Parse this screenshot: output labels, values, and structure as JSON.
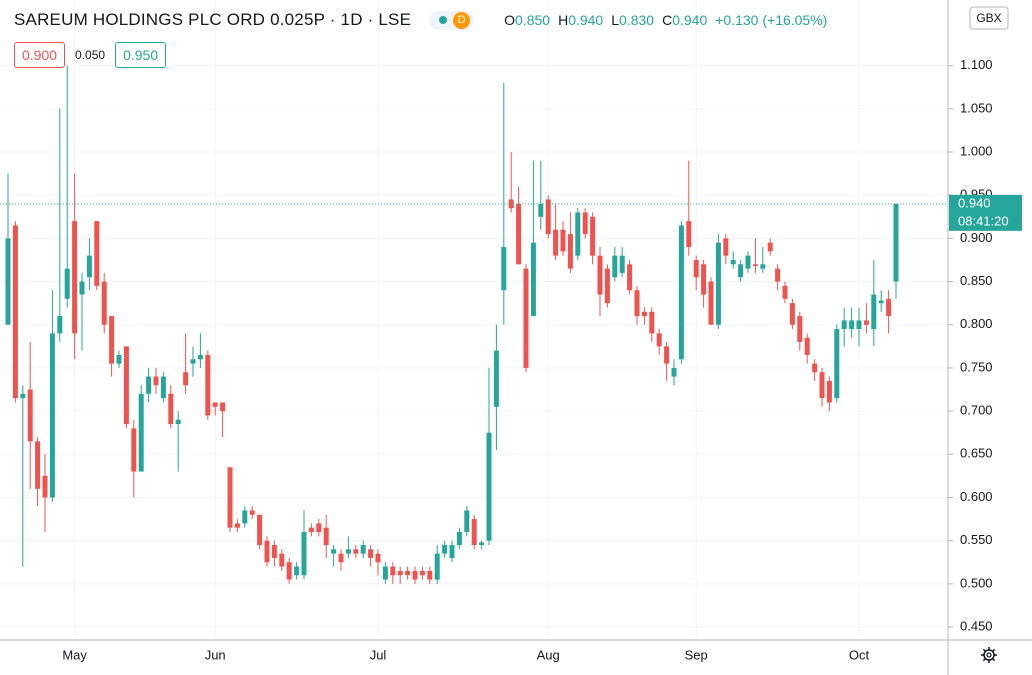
{
  "header": {
    "title": "SAREUM HOLDINGS PLC ORD 0.025P · 1D · LSE",
    "badge": "D",
    "ohlc": [
      {
        "label": "O",
        "value": "0.850"
      },
      {
        "label": "H",
        "value": "0.940"
      },
      {
        "label": "L",
        "value": "0.830"
      },
      {
        "label": "C",
        "value": "0.940"
      }
    ],
    "change": "+0.130 (+16.05%)",
    "sell": "0.900",
    "spread": "0.050",
    "buy": "0.950",
    "currency": "GBX",
    "price_label": "0.940",
    "countdown": "08:41:20"
  },
  "chart_data": {
    "type": "candlestick",
    "up_color": "#26a69a",
    "down_color": "#ef5350",
    "grid": true,
    "ylim": [
      0.435,
      1.176
    ],
    "yticks": [
      {
        "value": 0.45,
        "label": "0.450"
      },
      {
        "value": 0.5,
        "label": "0.500"
      },
      {
        "value": 0.55,
        "label": "0.550"
      },
      {
        "value": 0.6,
        "label": "0.600"
      },
      {
        "value": 0.65,
        "label": "0.650"
      },
      {
        "value": 0.7,
        "label": "0.700"
      },
      {
        "value": 0.75,
        "label": "0.750"
      },
      {
        "value": 0.8,
        "label": "0.800"
      },
      {
        "value": 0.85,
        "label": "0.850"
      },
      {
        "value": 0.9,
        "label": "0.900"
      },
      {
        "value": 0.95,
        "label": "0.950"
      },
      {
        "value": 1.0,
        "label": "1.000"
      },
      {
        "value": 1.05,
        "label": "1.050"
      },
      {
        "value": 1.1,
        "label": "1.100"
      }
    ],
    "categories": [
      null,
      null,
      null,
      null,
      null,
      null,
      null,
      null,
      null,
      "May",
      null,
      null,
      null,
      null,
      null,
      null,
      null,
      null,
      null,
      null,
      null,
      null,
      null,
      null,
      null,
      null,
      null,
      null,
      "Jun",
      null,
      null,
      null,
      null,
      null,
      null,
      null,
      null,
      null,
      null,
      null,
      null,
      null,
      null,
      null,
      null,
      null,
      null,
      null,
      null,
      null,
      "Jul",
      null,
      null,
      null,
      null,
      null,
      null,
      null,
      null,
      null,
      null,
      null,
      null,
      null,
      null,
      null,
      null,
      null,
      null,
      null,
      null,
      null,
      null,
      "Aug",
      null,
      null,
      null,
      null,
      null,
      null,
      null,
      null,
      null,
      null,
      null,
      null,
      null,
      null,
      null,
      null,
      null,
      null,
      null,
      "Sep",
      null,
      null,
      null,
      null,
      null,
      null,
      null,
      null,
      null,
      null,
      null,
      null,
      null,
      null,
      null,
      null,
      null,
      null,
      null,
      null,
      null,
      "Oct",
      null,
      null,
      null,
      null,
      null
    ],
    "open": [
      0.8,
      0.915,
      0.715,
      0.725,
      0.665,
      0.625,
      0.6,
      0.79,
      0.83,
      0.92,
      0.835,
      0.855,
      0.92,
      0.85,
      0.81,
      0.755,
      0.775,
      0.68,
      0.63,
      0.72,
      0.74,
      0.715,
      0.72,
      0.685,
      0.745,
      0.755,
      0.76,
      0.765,
      0.71,
      0.71,
      0.635,
      0.57,
      0.57,
      0.585,
      0.58,
      0.55,
      0.545,
      0.535,
      0.525,
      0.51,
      0.51,
      0.565,
      0.57,
      0.565,
      0.535,
      0.535,
      0.535,
      0.54,
      0.535,
      0.54,
      0.535,
      0.505,
      0.52,
      0.515,
      0.515,
      0.515,
      0.515,
      0.515,
      0.505,
      0.535,
      0.53,
      0.545,
      0.56,
      0.575,
      0.545,
      0.55,
      0.705,
      0.84,
      0.945,
      0.94,
      0.865,
      0.81,
      0.925,
      0.945,
      0.91,
      0.91,
      0.905,
      0.88,
      0.93,
      0.925,
      0.88,
      0.865,
      0.855,
      0.86,
      0.87,
      0.84,
      0.815,
      0.815,
      0.79,
      0.775,
      0.74,
      0.76,
      0.92,
      0.875,
      0.87,
      0.85,
      0.8,
      0.9,
      0.87,
      0.855,
      0.865,
      0.87,
      0.865,
      0.895,
      0.865,
      0.845,
      0.825,
      0.81,
      0.785,
      0.755,
      0.745,
      0.735,
      0.715,
      0.795,
      0.795,
      0.795,
      0.805,
      0.795,
      0.825,
      0.83,
      0.85
    ],
    "high": [
      0.975,
      0.92,
      0.73,
      0.78,
      0.67,
      0.65,
      0.84,
      1.05,
      1.1,
      0.975,
      0.86,
      0.9,
      0.92,
      0.86,
      0.81,
      0.77,
      0.775,
      0.69,
      0.73,
      0.75,
      0.75,
      0.745,
      0.73,
      0.7,
      0.79,
      0.775,
      0.79,
      0.77,
      0.71,
      0.71,
      0.635,
      0.575,
      0.59,
      0.59,
      0.58,
      0.555,
      0.55,
      0.54,
      0.53,
      0.525,
      0.585,
      0.57,
      0.575,
      0.58,
      0.545,
      0.54,
      0.555,
      0.545,
      0.55,
      0.545,
      0.54,
      0.525,
      0.525,
      0.52,
      0.52,
      0.52,
      0.52,
      0.52,
      0.545,
      0.55,
      0.55,
      0.565,
      0.59,
      0.58,
      0.55,
      0.75,
      0.8,
      1.08,
      1.0,
      0.96,
      0.87,
      0.99,
      0.99,
      0.95,
      0.94,
      0.92,
      0.93,
      0.935,
      0.935,
      0.93,
      0.89,
      0.87,
      0.89,
      0.89,
      0.875,
      0.845,
      0.82,
      0.82,
      0.795,
      0.78,
      0.76,
      0.92,
      0.99,
      0.88,
      0.875,
      0.855,
      0.905,
      0.905,
      0.885,
      0.875,
      0.885,
      0.9,
      0.89,
      0.9,
      0.87,
      0.85,
      0.83,
      0.815,
      0.79,
      0.76,
      0.75,
      0.74,
      0.8,
      0.82,
      0.82,
      0.82,
      0.825,
      0.875,
      0.84,
      0.84,
      0.94
    ],
    "low": [
      0.8,
      0.71,
      0.52,
      0.61,
      0.59,
      0.56,
      0.595,
      0.78,
      0.82,
      0.76,
      0.77,
      0.84,
      0.84,
      0.79,
      0.74,
      0.75,
      0.68,
      0.6,
      0.63,
      0.71,
      0.72,
      0.71,
      0.68,
      0.63,
      0.72,
      0.74,
      0.75,
      0.69,
      0.695,
      0.67,
      0.56,
      0.56,
      0.565,
      0.575,
      0.54,
      0.52,
      0.52,
      0.515,
      0.5,
      0.505,
      0.505,
      0.555,
      0.555,
      0.53,
      0.52,
      0.515,
      0.53,
      0.53,
      0.53,
      0.52,
      0.51,
      0.5,
      0.5,
      0.5,
      0.505,
      0.5,
      0.505,
      0.5,
      0.5,
      0.53,
      0.525,
      0.54,
      0.555,
      0.54,
      0.54,
      0.545,
      0.655,
      0.8,
      0.93,
      0.87,
      0.745,
      0.81,
      0.91,
      0.9,
      0.875,
      0.88,
      0.86,
      0.875,
      0.9,
      0.87,
      0.81,
      0.82,
      0.85,
      0.855,
      0.835,
      0.8,
      0.8,
      0.78,
      0.765,
      0.735,
      0.73,
      0.755,
      0.88,
      0.84,
      0.82,
      0.8,
      0.795,
      0.87,
      0.865,
      0.85,
      0.86,
      0.86,
      0.86,
      0.88,
      0.84,
      0.825,
      0.795,
      0.77,
      0.755,
      0.735,
      0.705,
      0.7,
      0.71,
      0.775,
      0.785,
      0.775,
      0.79,
      0.775,
      0.815,
      0.79,
      0.83
    ],
    "close": [
      0.9,
      0.715,
      0.72,
      0.665,
      0.61,
      0.6,
      0.79,
      0.81,
      0.865,
      0.79,
      0.85,
      0.88,
      0.845,
      0.8,
      0.755,
      0.765,
      0.685,
      0.63,
      0.72,
      0.74,
      0.73,
      0.74,
      0.685,
      0.69,
      0.73,
      0.76,
      0.765,
      0.695,
      0.705,
      0.7,
      0.565,
      0.565,
      0.585,
      0.58,
      0.545,
      0.525,
      0.53,
      0.52,
      0.505,
      0.52,
      0.56,
      0.56,
      0.56,
      0.545,
      0.54,
      0.525,
      0.54,
      0.535,
      0.545,
      0.53,
      0.525,
      0.52,
      0.51,
      0.51,
      0.51,
      0.505,
      0.51,
      0.505,
      0.535,
      0.545,
      0.545,
      0.56,
      0.585,
      0.545,
      0.548,
      0.675,
      0.77,
      0.89,
      0.935,
      0.87,
      0.75,
      0.895,
      0.94,
      0.905,
      0.88,
      0.885,
      0.865,
      0.93,
      0.905,
      0.88,
      0.835,
      0.825,
      0.88,
      0.88,
      0.84,
      0.81,
      0.81,
      0.79,
      0.775,
      0.755,
      0.75,
      0.915,
      0.89,
      0.855,
      0.835,
      0.8,
      0.895,
      0.88,
      0.875,
      0.87,
      0.88,
      0.868,
      0.87,
      0.885,
      0.85,
      0.83,
      0.8,
      0.78,
      0.765,
      0.745,
      0.715,
      0.71,
      0.795,
      0.805,
      0.805,
      0.805,
      0.8,
      0.835,
      0.828,
      0.81,
      0.94
    ]
  }
}
